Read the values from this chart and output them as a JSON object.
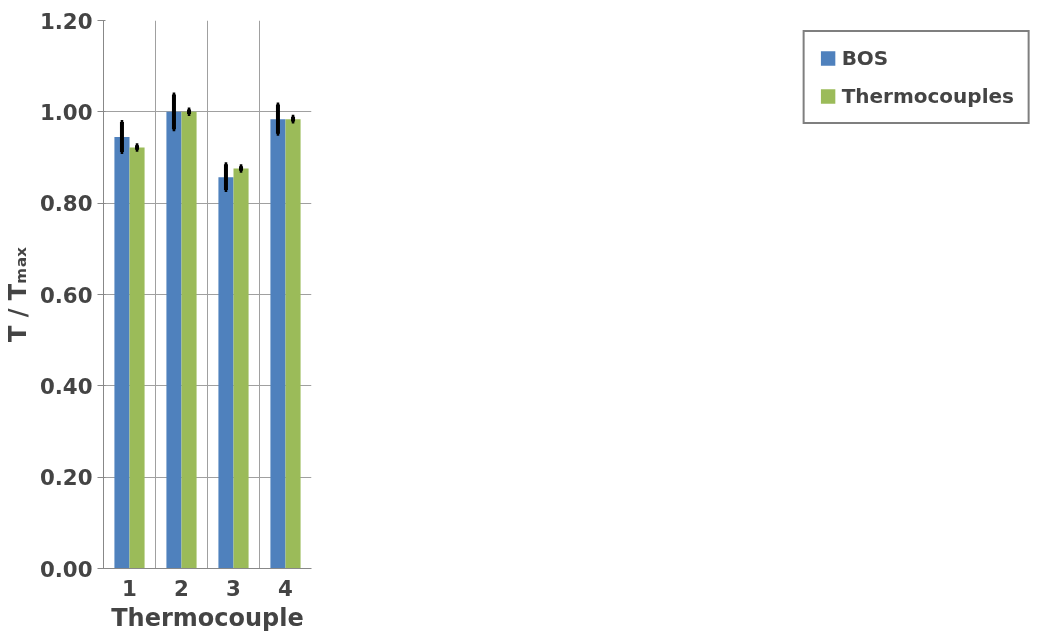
{
  "chart_data": {
    "type": "bar",
    "xlabel": "Thermocouple",
    "ylabel": "T / Tₘₐₓ",
    "categories": [
      "1",
      "2",
      "3",
      "4"
    ],
    "series": [
      {
        "name": "BOS",
        "color": "#4f81bd",
        "values": [
          0.945,
          1.0,
          0.857,
          0.984
        ],
        "errors": [
          0.033,
          0.038,
          0.028,
          0.032
        ]
      },
      {
        "name": "Thermocouples",
        "color": "#9bbb59",
        "values": [
          0.922,
          1.0,
          0.876,
          0.984
        ],
        "errors": [
          0.005,
          0.005,
          0.005,
          0.005
        ]
      }
    ],
    "ylim": [
      0,
      1.2
    ],
    "yticks": [
      {
        "value": 0,
        "label": "0.00"
      },
      {
        "value": 0.2,
        "label": "0.20"
      },
      {
        "value": 0.4,
        "label": "0.40"
      },
      {
        "value": 0.6,
        "label": "0.60"
      },
      {
        "value": 0.8,
        "label": "0.80"
      },
      {
        "value": 1.0,
        "label": "1.00"
      },
      {
        "value": 1.2,
        "label": "1.20"
      }
    ],
    "grid": true,
    "legend": "right"
  }
}
